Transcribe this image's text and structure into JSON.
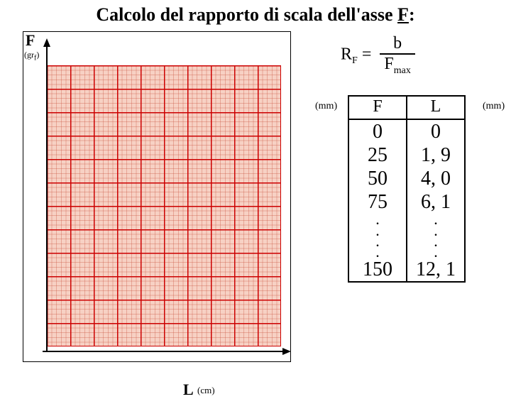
{
  "title_pre": "Calcolo del rapporto di scala dell'asse ",
  "title_axis": "F",
  "title_post": ":",
  "graph": {
    "y_label": "F",
    "y_unit": "(gr",
    "y_unit_sub": "f",
    "y_unit_close": ")",
    "x_label": "L",
    "x_unit": "(cm)",
    "fine_grid_color": "#f7d1c4",
    "major_grid_color": "#c00",
    "major_cols": 10,
    "major_rows": 12
  },
  "formula": {
    "lhs_R": "R",
    "lhs_sub": "F",
    "eq": " = ",
    "num": "b",
    "den_F": "F",
    "den_sub": "max"
  },
  "table": {
    "mm_left": "(mm)",
    "mm_right": "(mm)",
    "head_F": "F",
    "head_L": "L",
    "rows": [
      {
        "f": "0",
        "l": "0"
      },
      {
        "f": "25",
        "l": "1, 9"
      },
      {
        "f": "50",
        "l": "4, 0"
      },
      {
        "f": "75",
        "l": "6, 1"
      },
      {
        "f": ".",
        "l": ".",
        "dot": true
      },
      {
        "f": ".",
        "l": ".",
        "dot": true
      },
      {
        "f": ".",
        "l": ".",
        "dot": true
      },
      {
        "f": ".",
        "l": ".",
        "dot": true
      },
      {
        "f": "150",
        "l": "12, 1"
      }
    ]
  }
}
